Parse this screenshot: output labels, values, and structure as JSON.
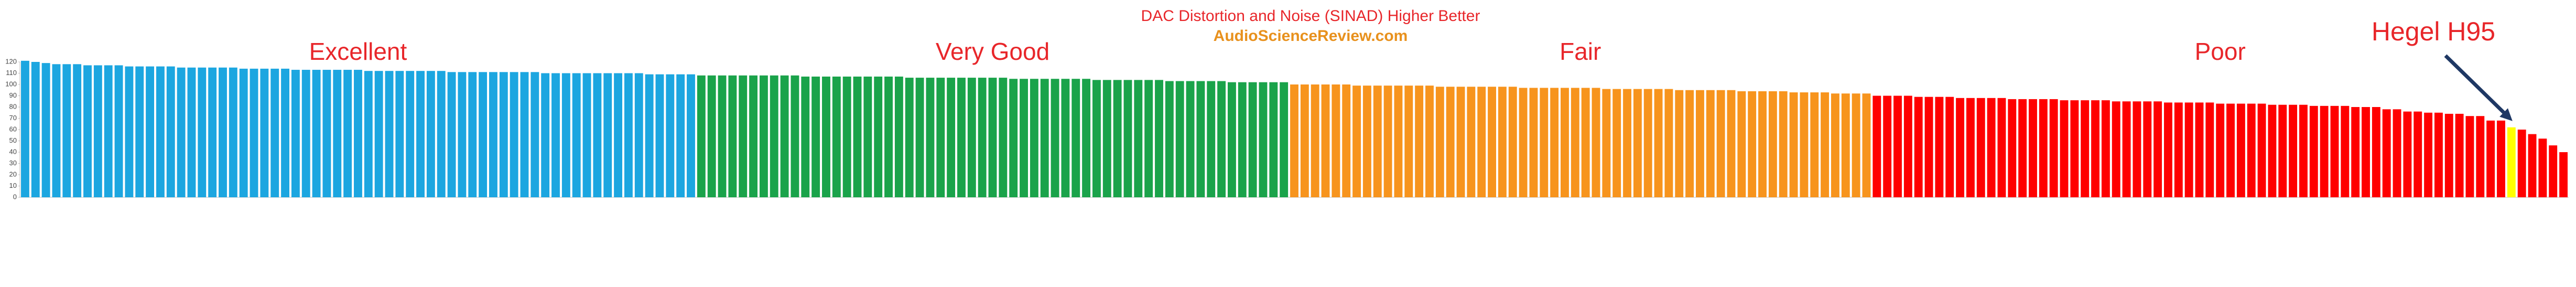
{
  "chart_data": {
    "type": "bar",
    "title": "DAC Distortion and Noise (SINAD) Higher Better",
    "subtitle": "AudioScienceReview.com",
    "annotation": "Hegel H95",
    "ylim": [
      0,
      120
    ],
    "yticks": [
      0,
      10,
      20,
      30,
      40,
      50,
      60,
      70,
      80,
      90,
      100,
      110,
      120
    ],
    "grid": false,
    "series": [
      {
        "name": "Excellent",
        "color": "#1ca6e0",
        "values": [
          121,
          120,
          119,
          118,
          118,
          118,
          117,
          117,
          117,
          117,
          116,
          116,
          116,
          116,
          116,
          115,
          115,
          115,
          115,
          115,
          115,
          114,
          114,
          114,
          114,
          114,
          113,
          113,
          113,
          113,
          113,
          113,
          113,
          112,
          112,
          112,
          112,
          112,
          112,
          112,
          112,
          111,
          111,
          111,
          111,
          111,
          111,
          111,
          111,
          111,
          110,
          110,
          110,
          110,
          110,
          110,
          110,
          110,
          110,
          110,
          109,
          109,
          109,
          109,
          109
        ]
      },
      {
        "name": "Very Good",
        "color": "#1aa34a",
        "values": [
          108,
          108,
          108,
          108,
          108,
          108,
          108,
          108,
          108,
          108,
          107,
          107,
          107,
          107,
          107,
          107,
          107,
          107,
          107,
          107,
          106,
          106,
          106,
          106,
          106,
          106,
          106,
          106,
          106,
          106,
          105,
          105,
          105,
          105,
          105,
          105,
          105,
          105,
          104,
          104,
          104,
          104,
          104,
          104,
          104,
          103,
          103,
          103,
          103,
          103,
          103,
          102,
          102,
          102,
          102,
          102,
          102
        ]
      },
      {
        "name": "Fair",
        "color": "#f7941d",
        "values": [
          100,
          100,
          100,
          100,
          100,
          100,
          99,
          99,
          99,
          99,
          99,
          99,
          99,
          99,
          98,
          98,
          98,
          98,
          98,
          98,
          98,
          98,
          97,
          97,
          97,
          97,
          97,
          97,
          97,
          97,
          96,
          96,
          96,
          96,
          96,
          96,
          96,
          95,
          95,
          95,
          95,
          95,
          95,
          94,
          94,
          94,
          94,
          94,
          93,
          93,
          93,
          93,
          92,
          92,
          92,
          92
        ]
      },
      {
        "name": "Poor",
        "colors": [
          "#ff0000",
          "#ff0000",
          "#ff0000",
          "#ff0000",
          "#ff0000",
          "#ff0000",
          "#ff0000",
          "#ff0000",
          "#ff0000",
          "#ff0000",
          "#ff0000",
          "#ff0000",
          "#ff0000",
          "#ff0000",
          "#ff0000",
          "#ff0000",
          "#ff0000",
          "#ff0000",
          "#ff0000",
          "#ff0000",
          "#ff0000",
          "#ff0000",
          "#ff0000",
          "#ff0000",
          "#ff0000",
          "#ff0000",
          "#ff0000",
          "#ff0000",
          "#ff0000",
          "#ff0000",
          "#ff0000",
          "#ff0000",
          "#ff0000",
          "#ff0000",
          "#ff0000",
          "#ff0000",
          "#ff0000",
          "#ff0000",
          "#ff0000",
          "#ff0000",
          "#ff0000",
          "#ff0000",
          "#ff0000",
          "#ff0000",
          "#ff0000",
          "#ff0000",
          "#ff0000",
          "#ff0000",
          "#ff0000",
          "#ff0000",
          "#ff0000",
          "#ff0000",
          "#ff0000",
          "#ff0000",
          "#ff0000",
          "#ff0000",
          "#ff0000",
          "#ff0000",
          "#ff0000",
          "#ff0000",
          "#ff0000",
          "#ffff00",
          "#ff0000",
          "#ff0000",
          "#ff0000",
          "#ff0000",
          "#ff0000"
        ],
        "values": [
          90,
          90,
          90,
          90,
          89,
          89,
          89,
          89,
          88,
          88,
          88,
          88,
          88,
          87,
          87,
          87,
          87,
          87,
          86,
          86,
          86,
          86,
          86,
          85,
          85,
          85,
          85,
          85,
          84,
          84,
          84,
          84,
          84,
          83,
          83,
          83,
          83,
          83,
          82,
          82,
          82,
          82,
          81,
          81,
          81,
          81,
          80,
          80,
          80,
          78,
          78,
          76,
          76,
          75,
          75,
          74,
          74,
          72,
          72,
          68,
          68,
          62,
          60,
          56,
          52,
          46,
          40
        ]
      }
    ]
  }
}
